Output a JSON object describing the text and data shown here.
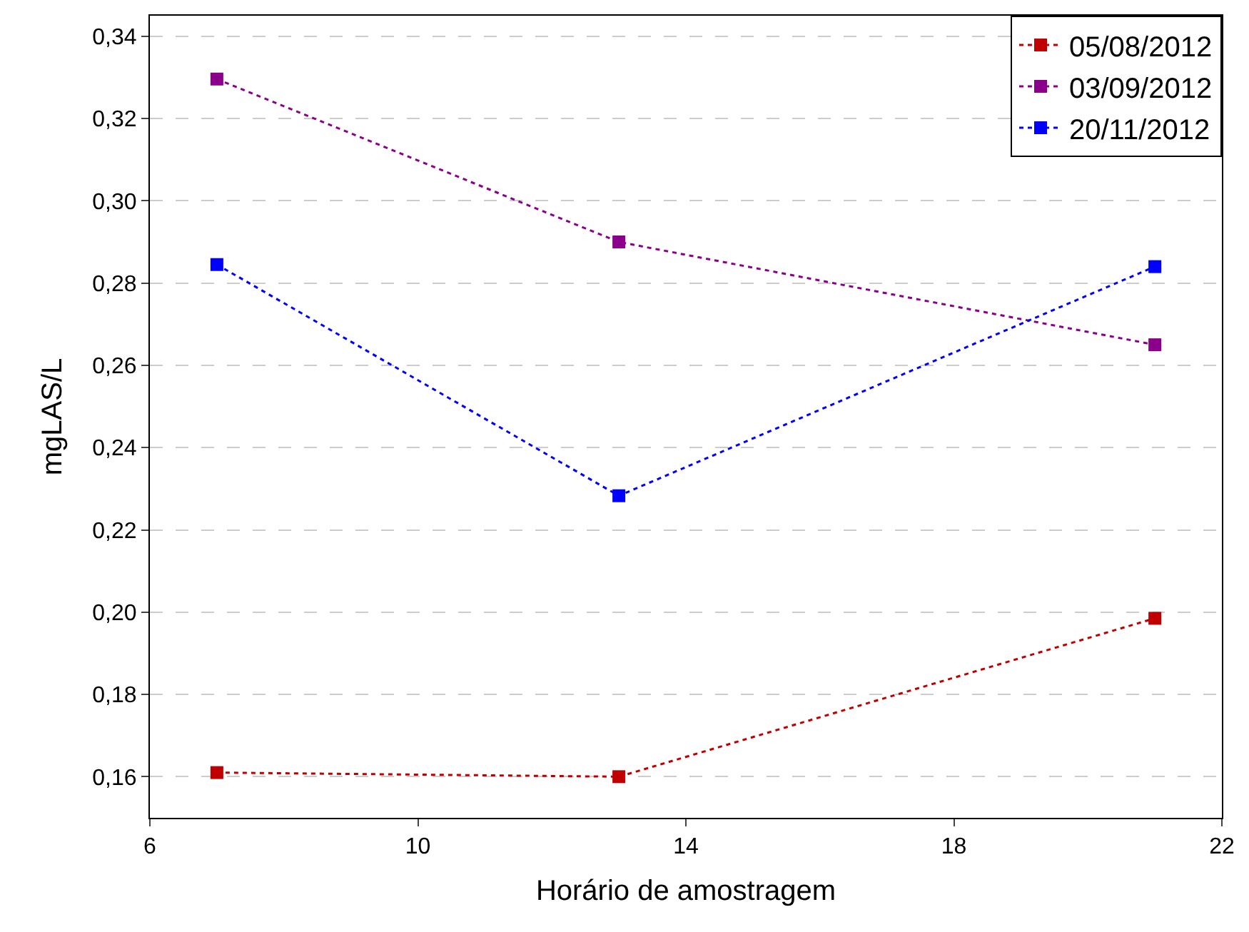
{
  "chart_data": {
    "type": "line",
    "xlabel": "Horário de amostragem",
    "ylabel": "mgLAS/L",
    "x": [
      7,
      13,
      21
    ],
    "series": [
      {
        "name": "05/08/2012",
        "color": "#c00000",
        "values": [
          0.161,
          0.16,
          0.1985
        ]
      },
      {
        "name": "03/09/2012",
        "color": "#8b008b",
        "values": [
          0.3296,
          0.29,
          0.265
        ]
      },
      {
        "name": "20/11/2012",
        "color": "#0000ff",
        "values": [
          0.2845,
          0.2283,
          0.284
        ]
      }
    ],
    "xlim": [
      6,
      22
    ],
    "xticks": [
      6,
      10,
      14,
      18,
      22
    ],
    "ylim": [
      0.15,
      0.345
    ],
    "yticks": [
      {
        "value": 0.16,
        "label": "0,16"
      },
      {
        "value": 0.18,
        "label": "0,18"
      },
      {
        "value": 0.2,
        "label": "0,20"
      },
      {
        "value": 0.22,
        "label": "0,22"
      },
      {
        "value": 0.24,
        "label": "0,24"
      },
      {
        "value": 0.26,
        "label": "0,26"
      },
      {
        "value": 0.28,
        "label": "0,28"
      },
      {
        "value": 0.3,
        "label": "0,30"
      },
      {
        "value": 0.32,
        "label": "0,32"
      },
      {
        "value": 0.34,
        "label": "0,34"
      }
    ],
    "grid": "y",
    "legend": "top right",
    "marker": "square",
    "line_style": "dotted"
  }
}
